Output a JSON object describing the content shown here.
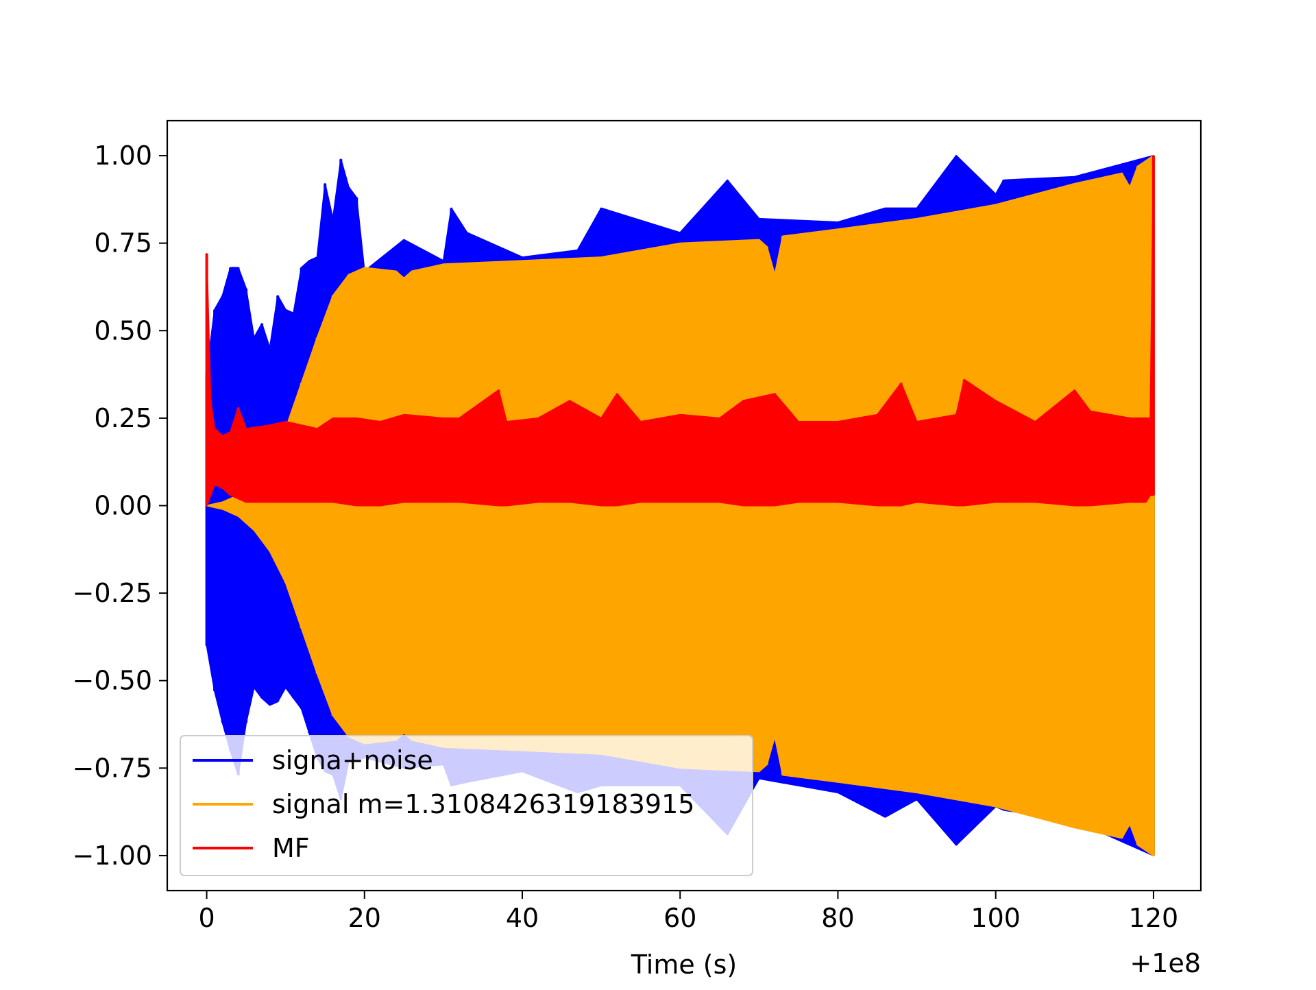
{
  "chart_data": {
    "type": "line",
    "title": "",
    "xlabel": "Time (s)",
    "ylabel": "",
    "x_offset_label": "+1e8",
    "xlim": [
      -5,
      126
    ],
    "ylim": [
      -1.1,
      1.1
    ],
    "x_ticks": [
      0,
      20,
      40,
      60,
      80,
      100,
      120
    ],
    "x_tick_labels": [
      "0",
      "20",
      "40",
      "60",
      "80",
      "100",
      "120"
    ],
    "y_ticks": [
      1.0,
      0.75,
      0.5,
      0.25,
      0.0,
      -0.25,
      -0.5,
      -0.75,
      -1.0
    ],
    "y_tick_labels": [
      "1.00",
      "0.75",
      "0.50",
      "0.25",
      "0.00",
      "−0.25",
      "−0.50",
      "−0.75",
      "−1.00"
    ],
    "grid": false,
    "legend_position": "lower-left",
    "series": [
      {
        "name": "signa+noise",
        "color": "#0000ff",
        "x": [
          0,
          1,
          2,
          3,
          4,
          5,
          6,
          7,
          8,
          9,
          10,
          11,
          12,
          13,
          14,
          15,
          16,
          17,
          18,
          19,
          20,
          25,
          30,
          31,
          33,
          40,
          47,
          50,
          60,
          66,
          70,
          80,
          86,
          90,
          95,
          100,
          101,
          110,
          120
        ],
        "y_upper": [
          0.38,
          0.56,
          0.6,
          0.68,
          0.68,
          0.62,
          0.48,
          0.52,
          0.45,
          0.6,
          0.56,
          0.55,
          0.68,
          0.7,
          0.71,
          0.92,
          0.82,
          0.99,
          0.91,
          0.88,
          0.67,
          0.76,
          0.7,
          0.85,
          0.78,
          0.71,
          0.73,
          0.85,
          0.78,
          0.93,
          0.82,
          0.81,
          0.85,
          0.85,
          1.0,
          0.89,
          0.93,
          0.94,
          1.0
        ],
        "y_lower": [
          -0.4,
          -0.53,
          -0.62,
          -0.7,
          -0.77,
          -0.62,
          -0.52,
          -0.55,
          -0.57,
          -0.56,
          -0.52,
          -0.55,
          -0.58,
          -0.65,
          -0.72,
          -0.76,
          -0.77,
          -0.84,
          -0.73,
          -0.73,
          -0.72,
          -0.75,
          -0.74,
          -0.8,
          -0.79,
          -0.76,
          -0.82,
          -0.8,
          -0.8,
          -0.94,
          -0.78,
          -0.82,
          -0.89,
          -0.84,
          -0.97,
          -0.86,
          -0.87,
          -0.9,
          -1.0
        ]
      },
      {
        "name": "signal m=1.3108426319183915",
        "color": "#ffa500",
        "x": [
          0,
          2,
          4,
          6,
          8,
          10,
          12,
          14,
          16,
          18,
          20,
          24,
          25,
          26,
          30,
          40,
          50,
          60,
          70,
          71,
          72,
          73,
          80,
          90,
          95,
          100,
          110,
          116,
          117,
          118,
          120
        ],
        "y_upper": [
          0.0,
          0.01,
          0.03,
          0.07,
          0.13,
          0.22,
          0.35,
          0.48,
          0.6,
          0.66,
          0.68,
          0.67,
          0.65,
          0.67,
          0.69,
          0.7,
          0.71,
          0.75,
          0.76,
          0.74,
          0.66,
          0.77,
          0.79,
          0.82,
          0.84,
          0.86,
          0.92,
          0.95,
          0.91,
          0.97,
          1.0
        ],
        "y_lower": [
          0.0,
          -0.01,
          -0.03,
          -0.07,
          -0.13,
          -0.22,
          -0.35,
          -0.48,
          -0.6,
          -0.66,
          -0.68,
          -0.67,
          -0.65,
          -0.67,
          -0.69,
          -0.7,
          -0.71,
          -0.75,
          -0.76,
          -0.74,
          -0.66,
          -0.77,
          -0.79,
          -0.82,
          -0.84,
          -0.86,
          -0.92,
          -0.95,
          -0.91,
          -0.97,
          -1.0
        ]
      },
      {
        "name": "MF",
        "color": "#ff0000",
        "x": [
          0,
          0.5,
          1,
          2,
          3,
          4,
          5,
          8,
          10,
          14,
          16,
          19,
          22,
          25,
          30,
          32,
          37,
          38,
          42,
          46,
          50,
          52,
          55,
          60,
          65,
          68,
          72,
          75,
          80,
          85,
          88,
          90,
          95,
          96,
          100,
          105,
          110,
          112,
          117,
          119,
          119.6,
          120
        ],
        "y_upper": [
          0.72,
          0.3,
          0.22,
          0.2,
          0.21,
          0.28,
          0.22,
          0.23,
          0.24,
          0.22,
          0.25,
          0.25,
          0.24,
          0.26,
          0.25,
          0.25,
          0.33,
          0.24,
          0.25,
          0.3,
          0.25,
          0.32,
          0.24,
          0.26,
          0.25,
          0.3,
          0.32,
          0.24,
          0.24,
          0.26,
          0.35,
          0.24,
          0.26,
          0.36,
          0.3,
          0.24,
          0.33,
          0.27,
          0.25,
          0.25,
          0.25,
          1.0
        ],
        "y_lower": [
          0.0,
          0.03,
          0.06,
          0.05,
          0.03,
          0.02,
          0.01,
          0.01,
          0.01,
          0.01,
          0.01,
          0.0,
          0.0,
          0.01,
          0.01,
          0.01,
          0.0,
          0.0,
          0.01,
          0.01,
          0.0,
          0.0,
          0.01,
          0.01,
          0.01,
          0.0,
          0.0,
          0.01,
          0.01,
          0.0,
          0.0,
          0.01,
          0.0,
          0.0,
          0.01,
          0.01,
          0.0,
          0.0,
          0.01,
          0.01,
          0.03,
          0.03
        ]
      }
    ]
  }
}
